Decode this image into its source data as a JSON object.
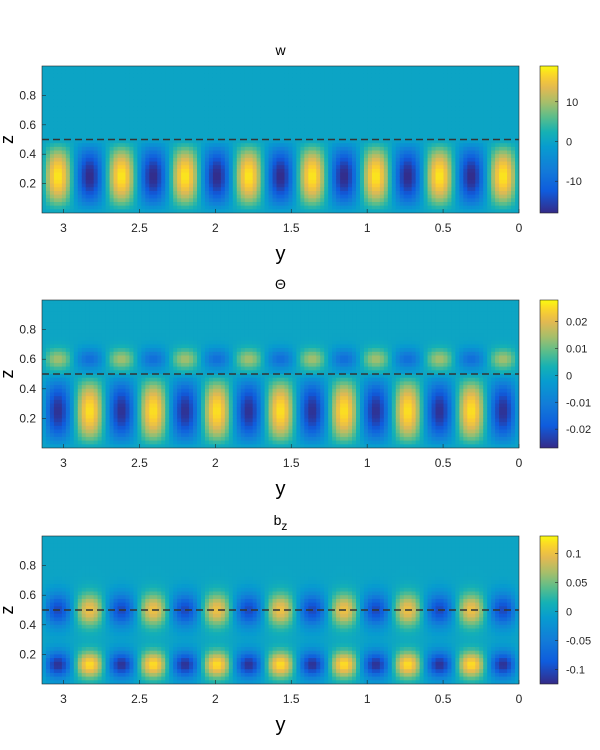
{
  "chart_data": [
    {
      "type": "heatmap",
      "title": "w",
      "xlabel": "y",
      "ylabel": "z",
      "xlim": [
        0,
        3.14159
      ],
      "x_reversed": true,
      "ylim": [
        0,
        1
      ],
      "xticks": [
        3,
        2.5,
        2,
        1.5,
        1,
        0.5,
        0
      ],
      "yticks": [
        0.2,
        0.4,
        0.6,
        0.8
      ],
      "colorbar": {
        "limits": [
          -18,
          19
        ],
        "ticks": [
          -10,
          0,
          10
        ]
      },
      "colormap": "parula",
      "dashed_line_z": 0.5,
      "pattern": {
        "mode": "w",
        "cells_across_y": 15,
        "amplitude": 18
      }
    },
    {
      "type": "heatmap",
      "title": "Θ",
      "xlabel": "y",
      "ylabel": "z",
      "xlim": [
        0,
        3.14159
      ],
      "x_reversed": true,
      "ylim": [
        0,
        1
      ],
      "xticks": [
        3,
        2.5,
        2,
        1.5,
        1,
        0.5,
        0
      ],
      "yticks": [
        0.2,
        0.4,
        0.6,
        0.8
      ],
      "colorbar": {
        "limits": [
          -0.027,
          0.028
        ],
        "ticks": [
          -0.02,
          -0.01,
          0,
          0.01,
          0.02
        ]
      },
      "colormap": "parula",
      "dashed_line_z": 0.5,
      "pattern": {
        "mode": "theta",
        "cells_across_y": 15,
        "amplitude": 0.026
      }
    },
    {
      "type": "heatmap",
      "title": "b",
      "title_subscript": "z",
      "xlabel": "y",
      "ylabel": "z",
      "xlim": [
        0,
        3.14159
      ],
      "x_reversed": true,
      "ylim": [
        0,
        1
      ],
      "xticks": [
        3,
        2.5,
        2,
        1.5,
        1,
        0.5,
        0
      ],
      "yticks": [
        0.2,
        0.4,
        0.6,
        0.8
      ],
      "colorbar": {
        "limits": [
          -0.125,
          0.13
        ],
        "ticks": [
          -0.1,
          -0.05,
          0,
          0.05,
          0.1
        ]
      },
      "colormap": "parula",
      "dashed_line_z": 0.5,
      "pattern": {
        "mode": "bz",
        "cells_across_y": 15,
        "amplitude": 0.12
      }
    }
  ]
}
